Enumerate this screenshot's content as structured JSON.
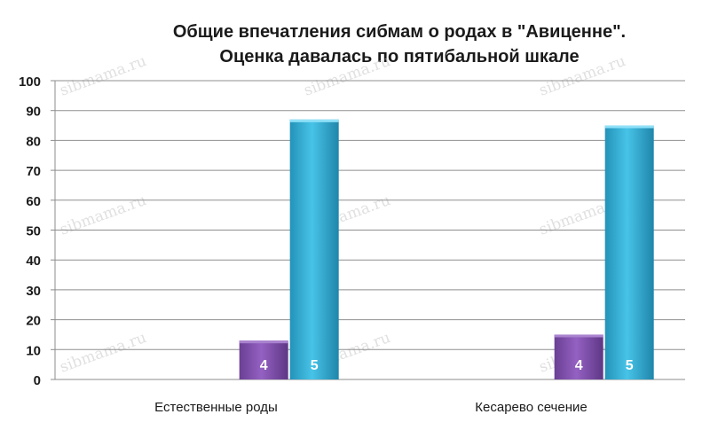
{
  "chart_data": {
    "type": "bar",
    "title_lines": [
      "Общие впечатления сибмам о родах в \"Авиценне\".",
      "Оценка давалась по пятибальной шкале"
    ],
    "categories": [
      "Естественные роды",
      "Кесарево сечение"
    ],
    "series": [
      {
        "name": "4",
        "color": "#7d4ea6",
        "values": [
          13,
          15
        ]
      },
      {
        "name": "5",
        "color": "#2fa7cc",
        "values": [
          87,
          85
        ]
      }
    ],
    "ylim": [
      0,
      100
    ],
    "yticks": [
      "0",
      "10",
      "20",
      "30",
      "40",
      "50",
      "60",
      "70",
      "80",
      "90",
      "100"
    ],
    "grid": true,
    "legend": "none"
  },
  "watermark": "sibmama.ru"
}
